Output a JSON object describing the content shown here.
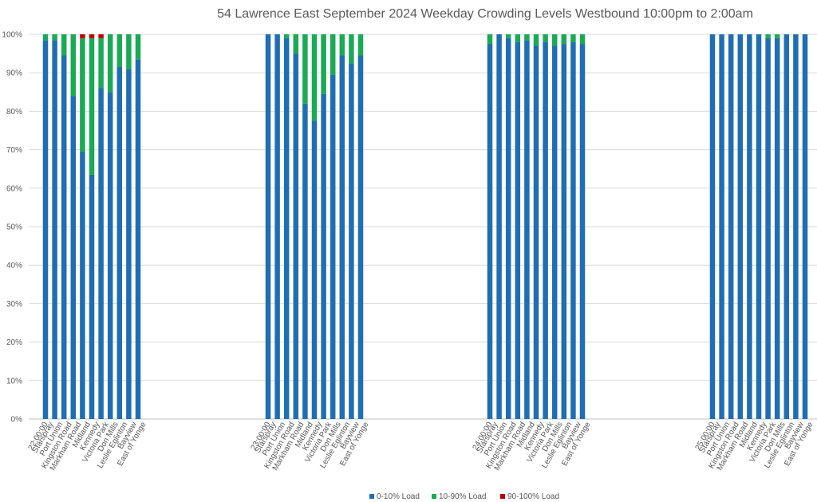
{
  "chart_data": {
    "type": "bar",
    "stacked": true,
    "title": "54 Lawrence East September 2024  Weekday Crowding Levels Westbound 10:00pm to 2:00am",
    "xlabel": "",
    "ylabel": "",
    "ylim": [
      0,
      100
    ],
    "y_tick_labels": [
      "0%",
      "10%",
      "20%",
      "30%",
      "40%",
      "50%",
      "60%",
      "70%",
      "80%",
      "90%",
      "100%"
    ],
    "grid": true,
    "legend_position": "bottom",
    "colors": [
      "#1F6EB4",
      "#1AAA55",
      "#C00000"
    ],
    "series_names": [
      "0-10% Load",
      "10-90% Load",
      "90-100% Load"
    ],
    "groups": [
      {
        "label": "22:00:00",
        "categories": [
          "Starspray",
          "Port Union",
          "Kingston Road",
          "Markham Road",
          "Midland",
          "Kennedy",
          "Victoria Park",
          "Don Mills",
          "Leslie Eglinton",
          "Bayview",
          "East of Yonge"
        ],
        "values": [
          [
            98.5,
            98.5,
            94.5,
            84,
            69.5,
            63.5,
            86,
            85,
            91.5,
            91,
            93.5
          ],
          [
            1.5,
            1.5,
            5.5,
            16,
            29.5,
            35.5,
            13,
            15,
            8.5,
            9,
            6.5
          ],
          [
            0,
            0,
            0,
            0,
            1,
            1,
            1,
            0,
            0,
            0,
            0
          ]
        ]
      },
      {
        "label": "23:00:00",
        "categories": [
          "Starspray",
          "Port Union",
          "Kingston Road",
          "Markham Road",
          "Midland",
          "Kennedy",
          "Victoria Park",
          "Don Mills",
          "Leslie Eglinton",
          "Bayview",
          "East of Yonge"
        ],
        "values": [
          [
            100,
            100,
            99,
            95,
            82,
            77.5,
            84.5,
            89.5,
            94.5,
            92.5,
            94.5
          ],
          [
            0,
            0,
            1,
            5,
            18,
            22.5,
            15.5,
            10.5,
            5.5,
            7.5,
            5.5
          ],
          [
            0,
            0,
            0,
            0,
            0,
            0,
            0,
            0,
            0,
            0,
            0
          ]
        ]
      },
      {
        "label": "24:00:00",
        "categories": [
          "Starspray",
          "Port Union",
          "Kingston Road",
          "Markham Road",
          "Midland",
          "Kennedy",
          "Victoria Park",
          "Don Mills",
          "Leslie Eglinton",
          "Bayview",
          "East of Yonge"
        ],
        "values": [
          [
            97.5,
            100,
            99,
            98,
            98.5,
            97,
            98,
            97,
            97.5,
            98,
            97.5
          ],
          [
            2.5,
            0,
            1,
            2,
            1.5,
            3,
            2,
            3,
            2.5,
            2,
            2.5
          ],
          [
            0,
            0,
            0,
            0,
            0,
            0,
            0,
            0,
            0,
            0,
            0
          ]
        ]
      },
      {
        "label": "25:00:00",
        "categories": [
          "Starspray",
          "Port Union",
          "Kingston Road",
          "Markham Road",
          "Midland",
          "Kennedy",
          "Victoria Park",
          "Don Mills",
          "Leslie Eglinton",
          "Bayview",
          "East of Yonge"
        ],
        "values": [
          [
            100,
            100,
            100,
            100,
            100,
            100,
            99,
            99,
            100,
            100,
            100
          ],
          [
            0,
            0,
            0,
            0,
            0,
            0,
            1,
            1,
            0,
            0,
            0
          ],
          [
            0,
            0,
            0,
            0,
            0,
            0,
            0,
            0,
            0,
            0,
            0
          ]
        ]
      }
    ]
  }
}
